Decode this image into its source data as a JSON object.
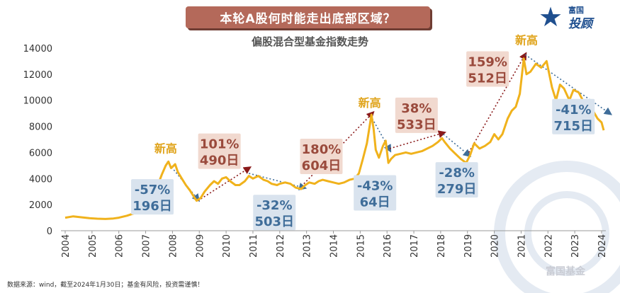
{
  "header": {
    "banner": "本轮A股何时能走出底部区域？",
    "logo_line1": "富国",
    "logo_line2": "投顾"
  },
  "footer": {
    "source": "数据来源：wind，截至2024年1月30日；基金有风险，投资需谨慎！",
    "watermark": "富国基金"
  },
  "chart_data": {
    "type": "line",
    "title": "偏股混合型基金指数走势",
    "xlabel": "",
    "ylabel": "",
    "xlim": [
      2004,
      2024.2
    ],
    "ylim": [
      0,
      14000
    ],
    "yticks": [
      0,
      2000,
      4000,
      6000,
      8000,
      10000,
      12000,
      14000
    ],
    "xticks": [
      "2004",
      "2005",
      "2006",
      "2007",
      "2008",
      "2009",
      "2010",
      "2011",
      "2012",
      "2013",
      "2014",
      "2015",
      "2016",
      "2017",
      "2018",
      "2019",
      "2020",
      "2021",
      "2022",
      "2023",
      "2024"
    ],
    "grid": false,
    "series": [
      {
        "color": "#f0b21c",
        "points": [
          [
            2004.0,
            1000
          ],
          [
            2004.3,
            1100
          ],
          [
            2004.6,
            1030
          ],
          [
            2004.9,
            960
          ],
          [
            2005.2,
            920
          ],
          [
            2005.5,
            900
          ],
          [
            2005.8,
            940
          ],
          [
            2006.0,
            1000
          ],
          [
            2006.3,
            1150
          ],
          [
            2006.6,
            1350
          ],
          [
            2006.8,
            1650
          ],
          [
            2007.0,
            2000
          ],
          [
            2007.2,
            2600
          ],
          [
            2007.4,
            3200
          ],
          [
            2007.6,
            4300
          ],
          [
            2007.75,
            5000
          ],
          [
            2007.85,
            5300
          ],
          [
            2007.95,
            4800
          ],
          [
            2008.1,
            5100
          ],
          [
            2008.2,
            4500
          ],
          [
            2008.35,
            4000
          ],
          [
            2008.5,
            3500
          ],
          [
            2008.65,
            3100
          ],
          [
            2008.8,
            2600
          ],
          [
            2008.9,
            2300
          ],
          [
            2009.05,
            2500
          ],
          [
            2009.2,
            3000
          ],
          [
            2009.4,
            3500
          ],
          [
            2009.55,
            3800
          ],
          [
            2009.7,
            3600
          ],
          [
            2009.85,
            4000
          ],
          [
            2010.0,
            4100
          ],
          [
            2010.15,
            3800
          ],
          [
            2010.35,
            3500
          ],
          [
            2010.5,
            3500
          ],
          [
            2010.7,
            3800
          ],
          [
            2010.85,
            4200
          ],
          [
            2011.0,
            4000
          ],
          [
            2011.2,
            4200
          ],
          [
            2011.4,
            3900
          ],
          [
            2011.55,
            3800
          ],
          [
            2011.7,
            3600
          ],
          [
            2011.9,
            3500
          ],
          [
            2012.0,
            3600
          ],
          [
            2012.2,
            3700
          ],
          [
            2012.4,
            3600
          ],
          [
            2012.6,
            3300
          ],
          [
            2012.8,
            3200
          ],
          [
            2012.95,
            3500
          ],
          [
            2013.1,
            3700
          ],
          [
            2013.3,
            3600
          ],
          [
            2013.45,
            3800
          ],
          [
            2013.6,
            3900
          ],
          [
            2013.8,
            3800
          ],
          [
            2014.0,
            3700
          ],
          [
            2014.2,
            3600
          ],
          [
            2014.4,
            3700
          ],
          [
            2014.6,
            3900
          ],
          [
            2014.8,
            4000
          ],
          [
            2014.95,
            4400
          ],
          [
            2015.1,
            5500
          ],
          [
            2015.25,
            6700
          ],
          [
            2015.35,
            8000
          ],
          [
            2015.42,
            8900
          ],
          [
            2015.5,
            7800
          ],
          [
            2015.58,
            6200
          ],
          [
            2015.7,
            5600
          ],
          [
            2015.85,
            6500
          ],
          [
            2015.95,
            6900
          ],
          [
            2016.05,
            5200
          ],
          [
            2016.15,
            5500
          ],
          [
            2016.3,
            5800
          ],
          [
            2016.5,
            5900
          ],
          [
            2016.7,
            6000
          ],
          [
            2016.9,
            5900
          ],
          [
            2017.1,
            6000
          ],
          [
            2017.3,
            6100
          ],
          [
            2017.5,
            6300
          ],
          [
            2017.7,
            6500
          ],
          [
            2017.9,
            6800
          ],
          [
            2018.05,
            7100
          ],
          [
            2018.15,
            6800
          ],
          [
            2018.35,
            6300
          ],
          [
            2018.55,
            5900
          ],
          [
            2018.75,
            5500
          ],
          [
            2018.95,
            5200
          ],
          [
            2019.1,
            5800
          ],
          [
            2019.25,
            6700
          ],
          [
            2019.45,
            6300
          ],
          [
            2019.65,
            6500
          ],
          [
            2019.85,
            6800
          ],
          [
            2020.0,
            7400
          ],
          [
            2020.15,
            7000
          ],
          [
            2020.3,
            7400
          ],
          [
            2020.5,
            8600
          ],
          [
            2020.65,
            9200
          ],
          [
            2020.8,
            9500
          ],
          [
            2020.95,
            10500
          ],
          [
            2021.1,
            13200
          ],
          [
            2021.2,
            12000
          ],
          [
            2021.35,
            12200
          ],
          [
            2021.55,
            12800
          ],
          [
            2021.75,
            12500
          ],
          [
            2021.95,
            13000
          ],
          [
            2022.15,
            11000
          ],
          [
            2022.3,
            10000
          ],
          [
            2022.45,
            11200
          ],
          [
            2022.6,
            10900
          ],
          [
            2022.8,
            10000
          ],
          [
            2022.95,
            10800
          ],
          [
            2023.15,
            10600
          ],
          [
            2023.3,
            10000
          ],
          [
            2023.5,
            9600
          ],
          [
            2023.65,
            9300
          ],
          [
            2023.85,
            8600
          ],
          [
            2024.0,
            8300
          ],
          [
            2024.08,
            7700
          ]
        ]
      }
    ],
    "trend_arrows": [
      {
        "color": "#3f6d99",
        "from": [
          2007.8,
          5300
        ],
        "to": [
          2008.95,
          2400
        ]
      },
      {
        "color": "#8a1a1a",
        "from": [
          2008.95,
          2300
        ],
        "to": [
          2010.85,
          4800
        ]
      },
      {
        "color": "#3f6d99",
        "from": [
          2010.85,
          4400
        ],
        "to": [
          2012.9,
          3300
        ]
      },
      {
        "color": "#8a1a1a",
        "from": [
          2012.9,
          3600
        ],
        "to": [
          2015.45,
          9000
        ]
      },
      {
        "color": "#3f6d99",
        "from": [
          2015.45,
          8600
        ],
        "to": [
          2016.1,
          6200
        ]
      },
      {
        "color": "#8a1a1a",
        "from": [
          2016.1,
          6300
        ],
        "to": [
          2018.1,
          7500
        ]
      },
      {
        "color": "#3f6d99",
        "from": [
          2018.1,
          7400
        ],
        "to": [
          2019.05,
          5800
        ]
      },
      {
        "color": "#8a1a1a",
        "from": [
          2019.05,
          6000
        ],
        "to": [
          2021.15,
          13500
        ]
      },
      {
        "color": "#3f6d99",
        "from": [
          2021.15,
          13500
        ],
        "to": [
          2024.3,
          9000
        ]
      }
    ],
    "highs": [
      {
        "label": "新高",
        "x": 2007.75,
        "y": 6000
      },
      {
        "label": "新高",
        "x": 2015.35,
        "y": 9500
      },
      {
        "label": "新高",
        "x": 2021.2,
        "y": 14300
      }
    ],
    "annotations": [
      {
        "kind": "down",
        "line1": "-57%",
        "line2": "196日",
        "x": 2007.25,
        "y": 2600
      },
      {
        "kind": "up",
        "line1": "101%",
        "line2": "490日",
        "x": 2009.75,
        "y": 6100
      },
      {
        "kind": "down",
        "line1": "-32%",
        "line2": "503日",
        "x": 2011.8,
        "y": 1400
      },
      {
        "kind": "up",
        "line1": "180%",
        "line2": "604日",
        "x": 2013.55,
        "y": 5700
      },
      {
        "kind": "down",
        "line1": "-43%",
        "line2": "64日",
        "x": 2015.55,
        "y": 2900
      },
      {
        "kind": "up",
        "line1": "38%",
        "line2": "533日",
        "x": 2017.1,
        "y": 8850
      },
      {
        "kind": "down",
        "line1": "-28%",
        "line2": "279日",
        "x": 2018.6,
        "y": 3900
      },
      {
        "kind": "up",
        "line1": "159%",
        "line2": "512日",
        "x": 2019.75,
        "y": 12400
      },
      {
        "kind": "down",
        "line1": "-41%",
        "line2": "715日",
        "x": 2022.95,
        "y": 8750
      }
    ],
    "colors": {
      "line": "#f0b21c",
      "up_box": "#f1d9cf",
      "up_text": "#9a4a3c",
      "down_box": "#d9e3ee",
      "down_text": "#3f6d99",
      "axis": "#999999"
    }
  }
}
